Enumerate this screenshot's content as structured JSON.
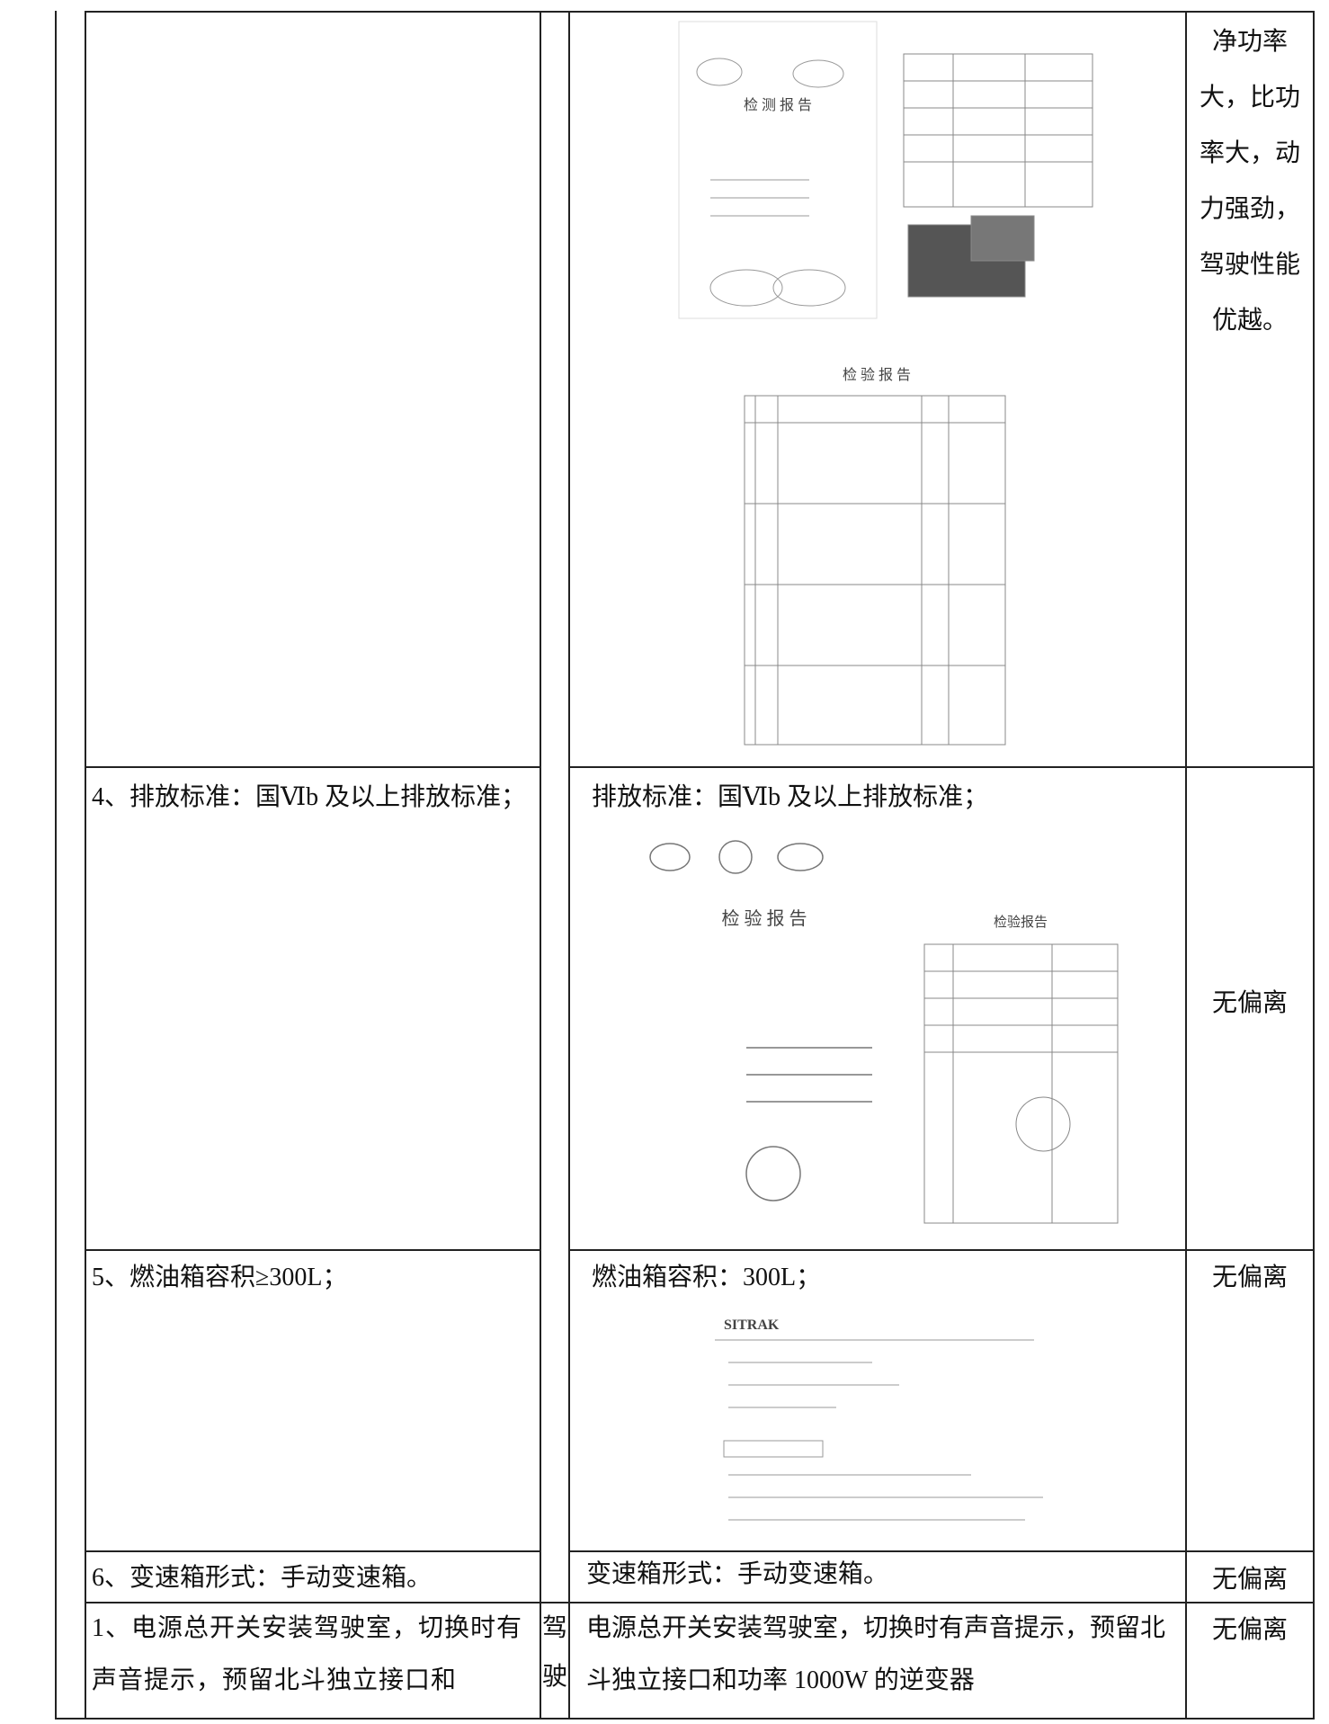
{
  "table": {
    "rows": [
      {
        "deviation": "净功率大，比功率大，动力强劲，驾驶性能优越。",
        "images": [
          "检  测  报  告",
          "检  验  报  告"
        ]
      },
      {
        "requirement": "4、排放标准：国Ⅵb 及以上排放标准；",
        "response": "排放标准：国Ⅵb 及以上排放标准；",
        "deviation": "无偏离",
        "images": [
          "检  验  报  告",
          "检验报告"
        ]
      },
      {
        "requirement": "5、燃油箱容积≥300L；",
        "response": "燃油箱容积：300L；",
        "deviation": "无偏离",
        "images": [
          "SITRAK"
        ]
      },
      {
        "requirement": "6、变速箱形式：手动变速箱。",
        "response": "变速箱形式：手动变速箱。",
        "deviation": "无偏离"
      },
      {
        "requirement": "1、电源总开关安装驾驶室，切换时有声音提示，预留北斗独立接口和",
        "category": "驾驶",
        "response": "电源总开关安装驾驶室，切换时有声音提示，预留北斗独立接口和功率 1000W 的逆变器",
        "deviation": "无偏离"
      }
    ]
  }
}
